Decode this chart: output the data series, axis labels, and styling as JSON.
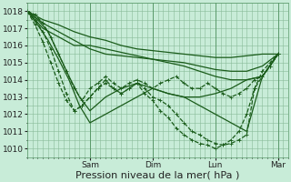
{
  "bg_color": "#c8ecd8",
  "plot_bg_color": "#c8ecd8",
  "grid_color": "#88bb99",
  "line_color": "#1a5c1a",
  "ylim": [
    1009.5,
    1018.5
  ],
  "yticks": [
    1010,
    1011,
    1012,
    1013,
    1014,
    1015,
    1016,
    1017,
    1018
  ],
  "xlabel": "Pression niveau de la mer( hPa )",
  "xlabel_fontsize": 8,
  "tick_fontsize": 6.5,
  "day_labels": [
    "Sam",
    "Dim",
    "Lun",
    "Mar"
  ],
  "day_positions": [
    24,
    48,
    72,
    96
  ],
  "xlim": [
    0,
    100
  ],
  "xtick_minor_interval": 1,
  "ytick_minor_interval": 0.5,
  "lines": [
    {
      "x": [
        0,
        6,
        12,
        18,
        24,
        30,
        36,
        42,
        48,
        54,
        60,
        66,
        72,
        78,
        84,
        90,
        96
      ],
      "y": [
        1018.0,
        1017.5,
        1017.2,
        1016.8,
        1016.5,
        1016.3,
        1016.0,
        1015.8,
        1015.7,
        1015.6,
        1015.5,
        1015.4,
        1015.3,
        1015.3,
        1015.4,
        1015.5,
        1015.5
      ],
      "style": "-",
      "lw": 0.9,
      "marker": null
    },
    {
      "x": [
        0,
        6,
        12,
        18,
        24,
        30,
        36,
        42,
        48,
        54,
        60,
        66,
        72,
        78,
        84,
        90,
        96
      ],
      "y": [
        1018.0,
        1017.3,
        1016.8,
        1016.3,
        1015.8,
        1015.5,
        1015.4,
        1015.3,
        1015.2,
        1015.1,
        1015.0,
        1014.8,
        1014.6,
        1014.5,
        1014.5,
        1014.8,
        1015.5
      ],
      "style": "-",
      "lw": 0.9,
      "marker": null
    },
    {
      "x": [
        0,
        6,
        12,
        18,
        24,
        30,
        36,
        42,
        48,
        54,
        60,
        66,
        72,
        78,
        84,
        90,
        96
      ],
      "y": [
        1018.0,
        1017.0,
        1016.5,
        1016.0,
        1016.0,
        1015.8,
        1015.6,
        1015.4,
        1015.2,
        1015.0,
        1014.8,
        1014.5,
        1014.2,
        1014.0,
        1014.0,
        1014.2,
        1015.5
      ],
      "style": "-",
      "lw": 0.9,
      "marker": null
    },
    {
      "x": [
        0,
        4,
        8,
        12,
        16,
        20,
        24,
        30,
        36,
        42,
        48,
        54,
        60,
        66,
        72,
        78,
        84,
        90,
        96
      ],
      "y": [
        1018.0,
        1017.5,
        1016.8,
        1015.5,
        1014.2,
        1013.0,
        1012.2,
        1013.0,
        1013.5,
        1013.8,
        1013.5,
        1013.2,
        1013.0,
        1013.0,
        1013.2,
        1013.5,
        1014.0,
        1014.2,
        1015.5
      ],
      "style": "-",
      "lw": 0.9,
      "marker": null
    },
    {
      "x": [
        0,
        4,
        8,
        12,
        16,
        20,
        24,
        30,
        36,
        42,
        48,
        54,
        60,
        66,
        72,
        78,
        84,
        90,
        96
      ],
      "y": [
        1018.0,
        1017.2,
        1016.3,
        1015.2,
        1014.0,
        1012.5,
        1011.5,
        1012.0,
        1012.5,
        1013.0,
        1013.5,
        1013.2,
        1013.0,
        1012.5,
        1012.0,
        1011.5,
        1011.0,
        1014.2,
        1015.5
      ],
      "style": "-",
      "lw": 0.9,
      "marker": null
    },
    {
      "x": [
        0,
        3,
        6,
        9,
        12,
        15,
        18,
        21,
        24,
        27,
        30,
        33,
        36,
        39,
        42,
        45,
        48,
        51,
        54,
        57,
        60,
        63,
        66,
        69,
        72,
        75,
        78,
        81,
        84,
        87,
        90,
        93,
        96
      ],
      "y": [
        1018.0,
        1017.8,
        1017.3,
        1016.5,
        1015.5,
        1014.5,
        1013.5,
        1012.8,
        1013.5,
        1013.8,
        1014.2,
        1013.8,
        1013.5,
        1013.8,
        1014.0,
        1013.8,
        1013.5,
        1013.8,
        1014.0,
        1014.2,
        1013.8,
        1013.5,
        1013.5,
        1013.8,
        1013.5,
        1013.2,
        1013.0,
        1013.2,
        1013.5,
        1014.0,
        1014.2,
        1014.8,
        1015.5
      ],
      "style": "--",
      "lw": 0.9,
      "marker": "+"
    },
    {
      "x": [
        0,
        3,
        6,
        9,
        12,
        15,
        18,
        21,
        24,
        27,
        30,
        33,
        36,
        39,
        42,
        45,
        48,
        51,
        54,
        57,
        60,
        63,
        66,
        69,
        72,
        75,
        78,
        81,
        84,
        87,
        90,
        93,
        96
      ],
      "y": [
        1018.0,
        1017.5,
        1016.8,
        1015.8,
        1014.5,
        1013.2,
        1012.2,
        1012.5,
        1013.0,
        1013.5,
        1013.8,
        1013.5,
        1013.2,
        1013.5,
        1013.8,
        1013.5,
        1013.0,
        1012.8,
        1012.5,
        1012.0,
        1011.5,
        1011.0,
        1010.8,
        1010.5,
        1010.3,
        1010.2,
        1010.3,
        1010.5,
        1010.8,
        1013.5,
        1014.2,
        1014.8,
        1015.5
      ],
      "style": "--",
      "lw": 0.9,
      "marker": "+"
    },
    {
      "x": [
        0,
        3,
        6,
        9,
        12,
        15,
        18,
        21,
        24,
        27,
        30,
        33,
        36,
        39,
        42,
        45,
        48,
        51,
        54,
        57,
        60,
        63,
        66,
        69,
        72,
        75,
        78,
        81,
        84,
        87,
        90,
        93,
        96
      ],
      "y": [
        1018.0,
        1017.2,
        1016.2,
        1015.0,
        1013.8,
        1012.8,
        1012.2,
        1012.5,
        1013.0,
        1013.5,
        1014.0,
        1013.5,
        1013.2,
        1013.5,
        1013.8,
        1013.2,
        1012.8,
        1012.2,
        1011.8,
        1011.2,
        1010.8,
        1010.5,
        1010.3,
        1010.2,
        1010.0,
        1010.2,
        1010.5,
        1011.0,
        1012.0,
        1013.5,
        1014.5,
        1015.0,
        1015.5
      ],
      "style": "--",
      "lw": 0.9,
      "marker": "+"
    }
  ]
}
